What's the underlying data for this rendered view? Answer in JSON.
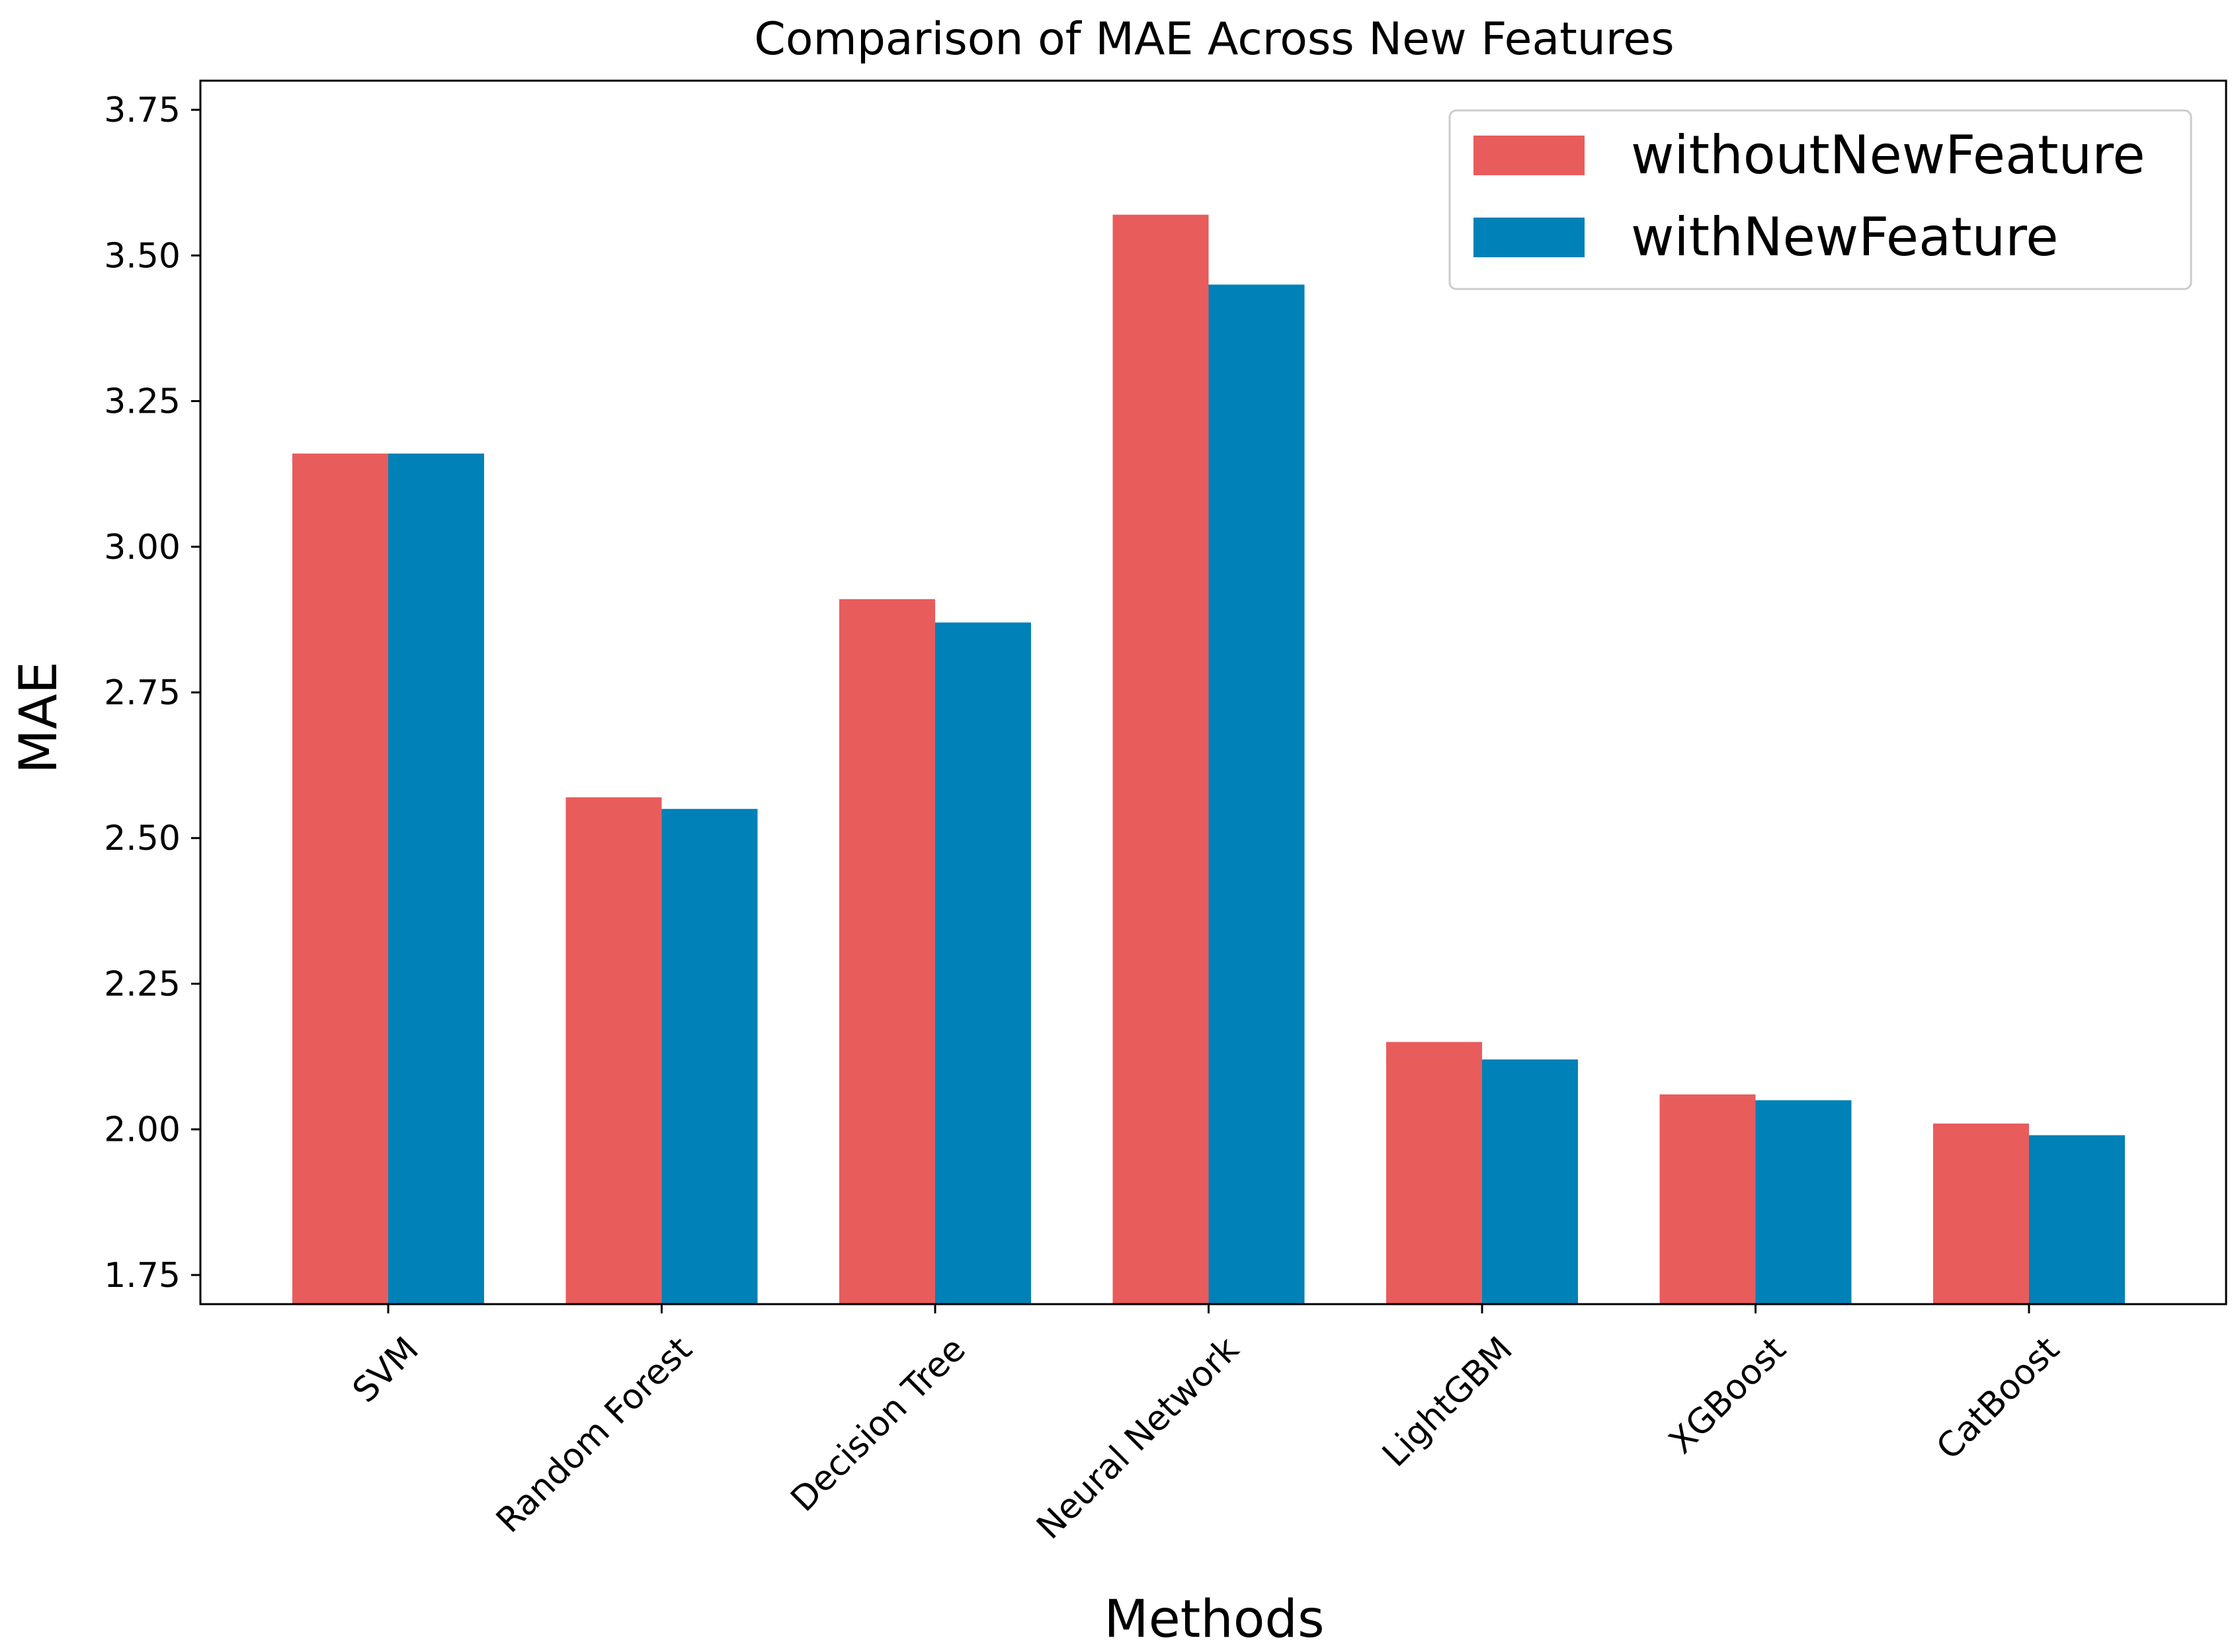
{
  "chart_data": {
    "type": "bar",
    "title": "Comparison of MAE Across New Features",
    "xlabel": "Methods",
    "ylabel": "MAE",
    "categories": [
      "SVM",
      "Random Forest",
      "Decision Tree",
      "Neural Network",
      "LightGBM",
      "XGBoost",
      "CatBoost"
    ],
    "series": [
      {
        "name": "withoutNewFeature",
        "color": "#e85c5c",
        "values": [
          3.16,
          2.57,
          2.91,
          3.57,
          2.15,
          2.06,
          2.01
        ]
      },
      {
        "name": "withNewFeature",
        "color": "#0081b7",
        "values": [
          3.16,
          2.55,
          2.87,
          3.45,
          2.12,
          2.05,
          1.99
        ]
      }
    ],
    "ylim": [
      1.7,
      3.8
    ],
    "yticks": [
      1.75,
      2.0,
      2.25,
      2.5,
      2.75,
      3.0,
      3.25,
      3.5,
      3.75
    ],
    "ytick_labels": [
      "1.75",
      "2.00",
      "2.25",
      "2.50",
      "2.75",
      "3.00",
      "3.25",
      "3.50",
      "3.75"
    ],
    "grid": false,
    "legend_position": "top-right"
  }
}
